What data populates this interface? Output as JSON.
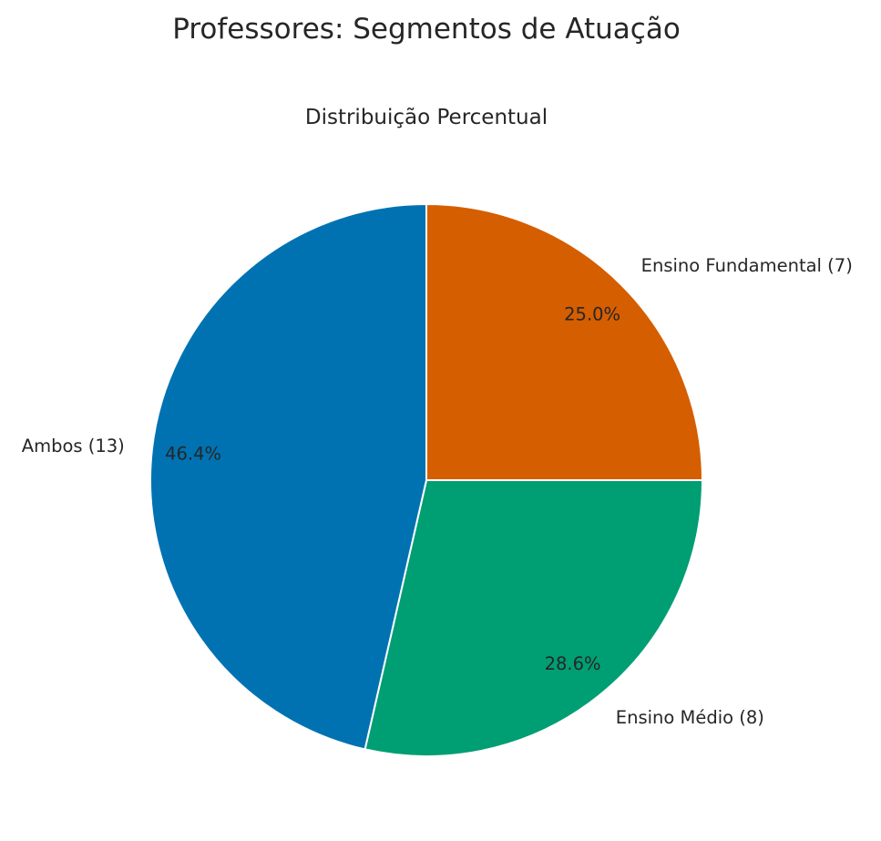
{
  "chart_data": {
    "type": "pie",
    "title": "Professores: Segmentos de Atuação",
    "subtitle": "Distribuição Percentual",
    "slices": [
      {
        "label": "Ensino Fundamental (7)",
        "value": 7,
        "percent_label": "25.0%",
        "color": "#d55e00"
      },
      {
        "label": "Ensino Médio (8)",
        "value": 8,
        "percent_label": "28.6%",
        "color": "#009e73"
      },
      {
        "label": "Ambos (13)",
        "value": 13,
        "percent_label": "46.4%",
        "color": "#0072b2"
      }
    ],
    "start_angle_deg": 90,
    "direction": "clockwise",
    "legend": "none"
  }
}
